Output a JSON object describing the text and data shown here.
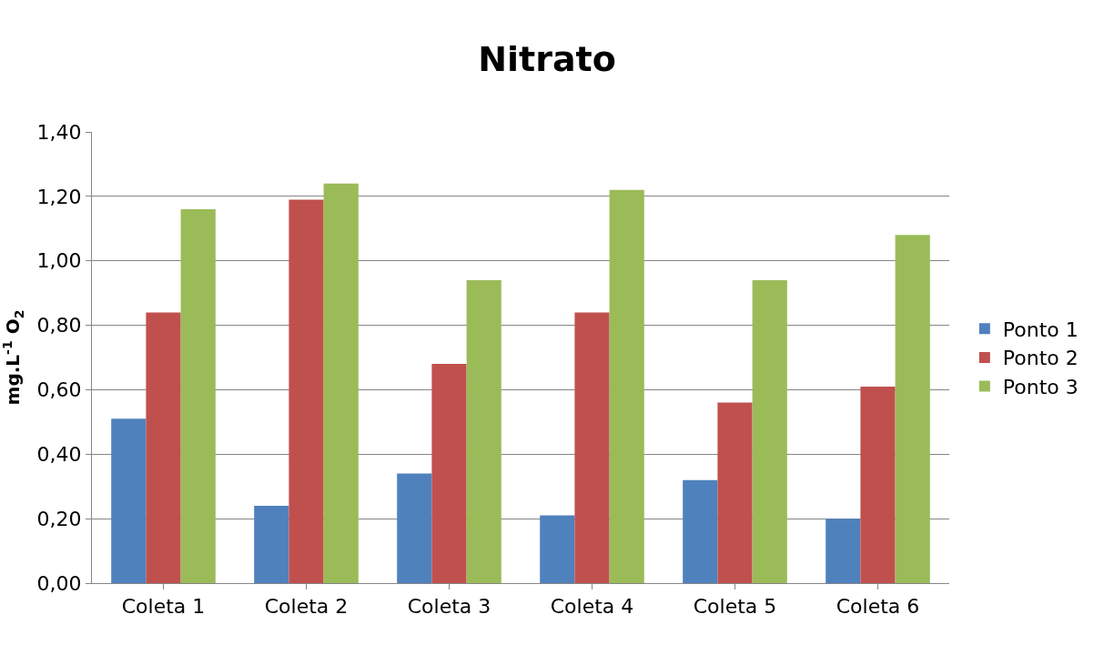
{
  "chart_data": {
    "type": "bar",
    "title": "Nitrato",
    "ylabel": "mg.L$^{-1}$ O$_{2}$",
    "categories": [
      "Coleta 1",
      "Coleta 2",
      "Coleta 3",
      "Coleta 4",
      "Coleta 5",
      "Coleta 6"
    ],
    "series": [
      {
        "name": "Ponto 1",
        "color": "#4f81bd",
        "values": [
          0.51,
          0.24,
          0.34,
          0.21,
          0.32,
          0.2
        ]
      },
      {
        "name": "Ponto 2",
        "color": "#c0504d",
        "values": [
          0.84,
          1.19,
          0.68,
          0.84,
          0.56,
          0.61
        ]
      },
      {
        "name": "Ponto 3",
        "color": "#9bbb59",
        "values": [
          1.16,
          1.24,
          0.94,
          1.22,
          0.94,
          1.08
        ]
      }
    ],
    "ylim": [
      0,
      1.4
    ],
    "yticks": [
      {
        "value": 0,
        "label": "0,00"
      },
      {
        "value": 0.2,
        "label": "0,20"
      },
      {
        "value": 0.4,
        "label": "0,40"
      },
      {
        "value": 0.6,
        "label": "0,60"
      },
      {
        "value": 0.8,
        "label": "0,80"
      },
      {
        "value": 1.0,
        "label": "1,00"
      },
      {
        "value": 1.2,
        "label": "1,20"
      },
      {
        "value": 1.4,
        "label": "1,40"
      }
    ],
    "grid": "y",
    "legend": "right"
  }
}
